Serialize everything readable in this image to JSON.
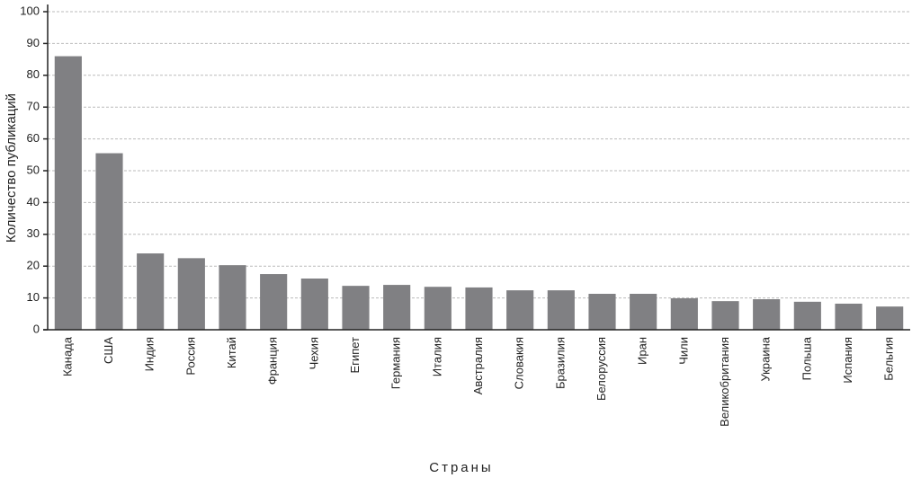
{
  "chart_data": {
    "type": "bar",
    "x_label": "Страны",
    "y_label": "Количество публикаций",
    "categories": [
      "Канада",
      "США",
      "Индия",
      "Россия",
      "Китай",
      "Франция",
      "Чехия",
      "Египет",
      "Германия",
      "Италия",
      "Австралия",
      "Словакия",
      "Бразилия",
      "Белоруссия",
      "Иран",
      "Чили",
      "Великобритания",
      "Украина",
      "Польша",
      "Испания",
      "Бельгия"
    ],
    "values": [
      86,
      55.5,
      24,
      22.5,
      20.3,
      17.5,
      16.1,
      13.8,
      14.1,
      13.5,
      13.3,
      12.4,
      12.4,
      11.3,
      11.3,
      9.9,
      9,
      9.6,
      8.8,
      8.2,
      7.3
    ],
    "color": "#808083",
    "ylim": [
      0,
      100
    ],
    "yticks": [
      0,
      10,
      20,
      30,
      40,
      50,
      60,
      70,
      80,
      90,
      100
    ],
    "grid": true
  }
}
